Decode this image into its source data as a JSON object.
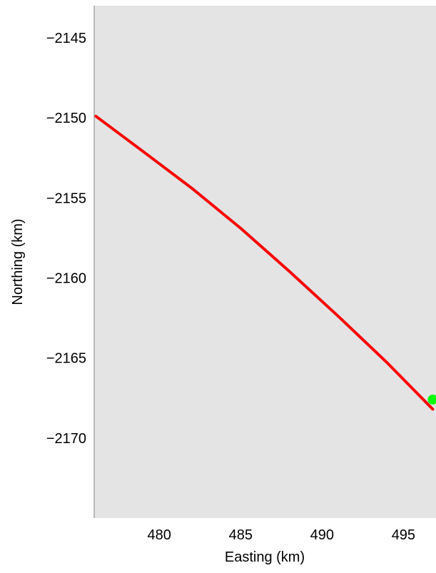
{
  "chart_data": {
    "type": "line",
    "xlabel": "Easting (km)",
    "ylabel": "Northing (km)",
    "xlim": [
      476,
      497
    ],
    "ylim": [
      -2175,
      -2143
    ],
    "xticks": [
      480,
      485,
      490,
      495
    ],
    "yticks": [
      -2145,
      -2150,
      -2155,
      -2160,
      -2165,
      -2170
    ],
    "xtick_labels": [
      "480",
      "485",
      "490",
      "495"
    ],
    "ytick_labels": [
      "−2145",
      "−2150",
      "−2155",
      "−2160",
      "−2165",
      "−2170"
    ],
    "grid": false,
    "series": [
      {
        "color": "#ff0000",
        "x": [
          476.1,
          479.0,
          482.0,
          485.0,
          488.0,
          491.0,
          494.0,
          496.8
        ],
        "y": [
          -2149.9,
          -2152.1,
          -2154.4,
          -2156.9,
          -2159.6,
          -2162.4,
          -2165.3,
          -2168.2
        ]
      }
    ],
    "markers": [
      {
        "color": "#00ff00",
        "x": 496.8,
        "y": -2167.6
      }
    ],
    "colors": {
      "plot_background": "#e4e4e4",
      "page_background": "#ffffff",
      "axis_line": "#808080"
    }
  }
}
